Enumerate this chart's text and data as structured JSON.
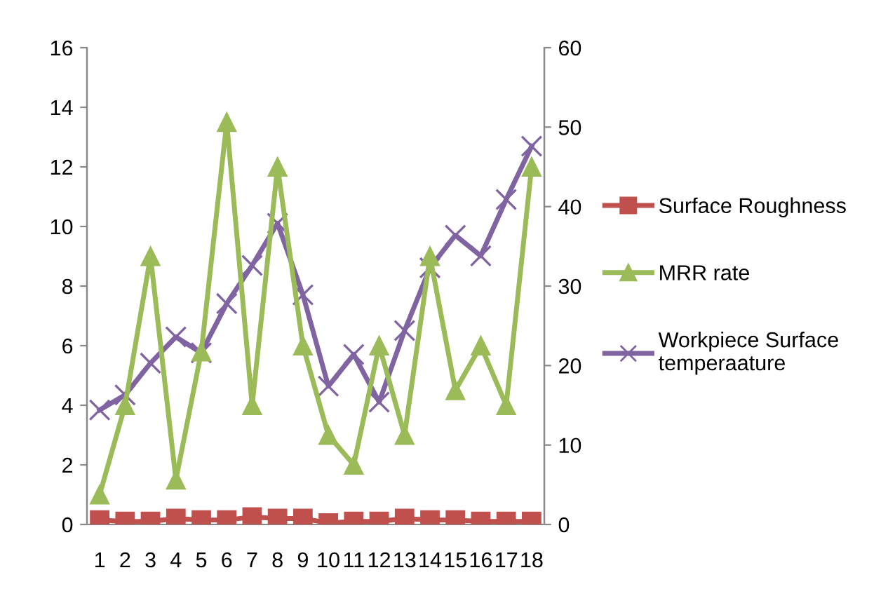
{
  "chart_data": {
    "type": "line",
    "categories": [
      "1",
      "2",
      "3",
      "4",
      "5",
      "6",
      "7",
      "8",
      "9",
      "10",
      "11",
      "12",
      "13",
      "14",
      "15",
      "16",
      "17",
      "18"
    ],
    "series": [
      {
        "name": "Surface Roughness",
        "color": "#c0504d",
        "marker": "square",
        "values": [
          0.15,
          0.1,
          0.1,
          0.2,
          0.15,
          0.15,
          0.25,
          0.2,
          0.2,
          0.05,
          0.1,
          0.1,
          0.2,
          0.15,
          0.15,
          0.1,
          0.1,
          0.1
        ]
      },
      {
        "name": "MRR rate",
        "color": "#9bbb59",
        "marker": "triangle",
        "values": [
          1,
          4,
          9,
          1.5,
          5.8,
          13.5,
          4,
          12,
          6,
          3,
          2,
          6,
          3,
          9,
          4.5,
          6,
          4,
          12
        ]
      },
      {
        "name": "Workpiece Surface temperaature",
        "color": "#8064a2",
        "marker": "cross",
        "axis": "y2",
        "values": [
          14.4,
          16.3,
          20.3,
          23.6,
          21.6,
          27.8,
          32.6,
          37.9,
          28.9,
          17.4,
          21.4,
          15.4,
          24.4,
          32.3,
          36.4,
          33.8,
          40.9,
          47.6
        ]
      }
    ],
    "ylim": [
      0,
      16
    ],
    "yticks": [
      0,
      2,
      4,
      6,
      8,
      10,
      12,
      14,
      16
    ],
    "y2lim": [
      0,
      60
    ],
    "y2ticks": [
      0,
      10,
      20,
      30,
      40,
      50,
      60
    ],
    "grid": false,
    "legend": "right",
    "line_style": "solid"
  }
}
